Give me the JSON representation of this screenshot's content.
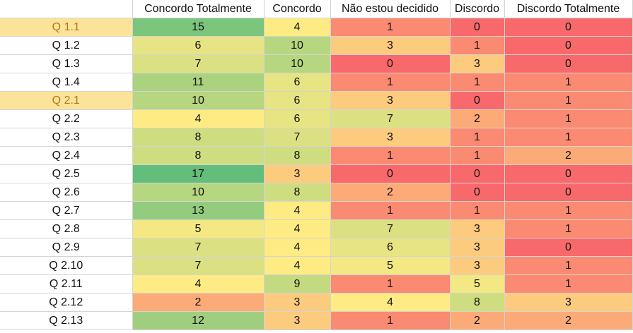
{
  "sheet": {
    "headers": [
      "",
      "Concordo Totalmente",
      "Concordo",
      "Não estou decidido",
      "Discordo",
      "Discordo Totalmente"
    ],
    "rows": [
      {
        "label": "Q 1.1",
        "values": [
          15,
          4,
          1,
          0,
          0
        ],
        "highlight": true
      },
      {
        "label": "Q 1.2",
        "values": [
          6,
          10,
          3,
          1,
          0
        ],
        "highlight": false
      },
      {
        "label": "Q 1.3",
        "values": [
          7,
          10,
          0,
          3,
          0
        ],
        "highlight": false
      },
      {
        "label": "Q 1.4",
        "values": [
          11,
          6,
          1,
          1,
          1
        ],
        "highlight": false
      },
      {
        "label": "Q 2.1",
        "values": [
          10,
          6,
          3,
          0,
          1
        ],
        "highlight": true
      },
      {
        "label": "Q 2.2",
        "values": [
          4,
          6,
          7,
          2,
          1
        ],
        "highlight": false
      },
      {
        "label": "Q 2.3",
        "values": [
          8,
          7,
          3,
          1,
          1
        ],
        "highlight": false
      },
      {
        "label": "Q 2.4",
        "values": [
          8,
          8,
          1,
          1,
          2
        ],
        "highlight": false
      },
      {
        "label": "Q 2.5",
        "values": [
          17,
          3,
          0,
          0,
          0
        ],
        "highlight": false
      },
      {
        "label": "Q 2.6",
        "values": [
          10,
          8,
          2,
          0,
          0
        ],
        "highlight": false
      },
      {
        "label": "Q 2.7",
        "values": [
          13,
          4,
          1,
          1,
          1
        ],
        "highlight": false
      },
      {
        "label": "Q 2.8",
        "values": [
          5,
          4,
          7,
          3,
          1
        ],
        "highlight": false
      },
      {
        "label": "Q 2.9",
        "values": [
          7,
          4,
          6,
          3,
          0
        ],
        "highlight": false
      },
      {
        "label": "Q 2.10",
        "values": [
          7,
          4,
          5,
          3,
          1
        ],
        "highlight": false
      },
      {
        "label": "Q 2.11",
        "values": [
          4,
          9,
          1,
          5,
          1
        ],
        "highlight": false
      },
      {
        "label": "Q 2.12",
        "values": [
          2,
          3,
          4,
          8,
          3
        ],
        "highlight": false
      },
      {
        "label": "Q 2.13",
        "values": [
          12,
          3,
          1,
          2,
          2
        ],
        "highlight": false
      }
    ],
    "color_scale": {
      "low": "#f8696b",
      "mid": "#ffeb84",
      "high": "#63be7b"
    }
  }
}
